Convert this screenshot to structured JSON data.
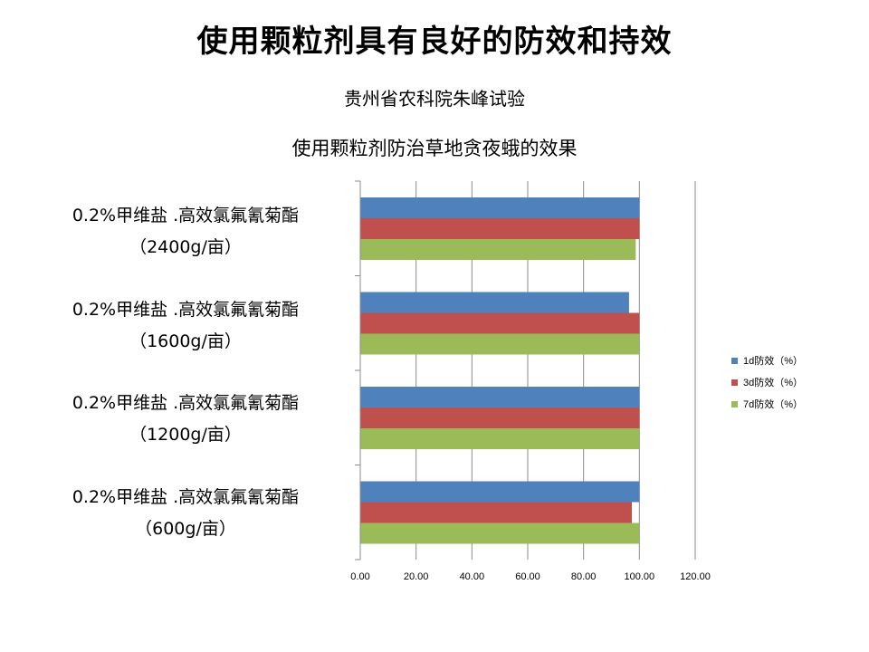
{
  "slide": {
    "title": "使用颗粒剂具有良好的防效和持效",
    "subtitle1": "贵州省农科院朱峰试验",
    "subtitle2": "使用颗粒剂防治草地贪夜蛾的效果"
  },
  "chart_data": {
    "type": "bar",
    "orientation": "horizontal",
    "categories": [
      "0.2%甲维盐 .高效氯氟氰菊酯（2400g/亩）",
      "0.2%甲维盐 .高效氯氟氰菊酯（1600g/亩）",
      "0.2%甲维盐 .高效氯氟氰菊酯（1200g/亩）",
      "0.2%甲维盐 .高效氯氟氰菊酯（600g/亩）"
    ],
    "category_lines": [
      [
        "0.2%甲维盐 .高效氯氟氰菊酯",
        "（2400g/亩）"
      ],
      [
        "0.2%甲维盐 .高效氯氟氰菊酯",
        "（1600g/亩）"
      ],
      [
        "0.2%甲维盐 .高效氯氟氰菊酯",
        "（1200g/亩）"
      ],
      [
        "0.2%甲维盐 .高效氯氟氰菊酯",
        "（600g/亩）"
      ]
    ],
    "series": [
      {
        "name": "1d防效（%）",
        "color": "#4F81BD",
        "values": [
          100,
          96.3,
          100,
          100
        ]
      },
      {
        "name": "3d防效（%）",
        "color": "#C0504D",
        "values": [
          100,
          100,
          100,
          97.3
        ]
      },
      {
        "name": "7d防效（%）",
        "color": "#9BBB59",
        "values": [
          98.7,
          100,
          100,
          100
        ]
      }
    ],
    "xlim": [
      0,
      120
    ],
    "xticks": [
      "0.00",
      "20.00",
      "40.00",
      "60.00",
      "80.00",
      "100.00",
      "120.00"
    ],
    "grid": true,
    "legend_position": "right"
  }
}
